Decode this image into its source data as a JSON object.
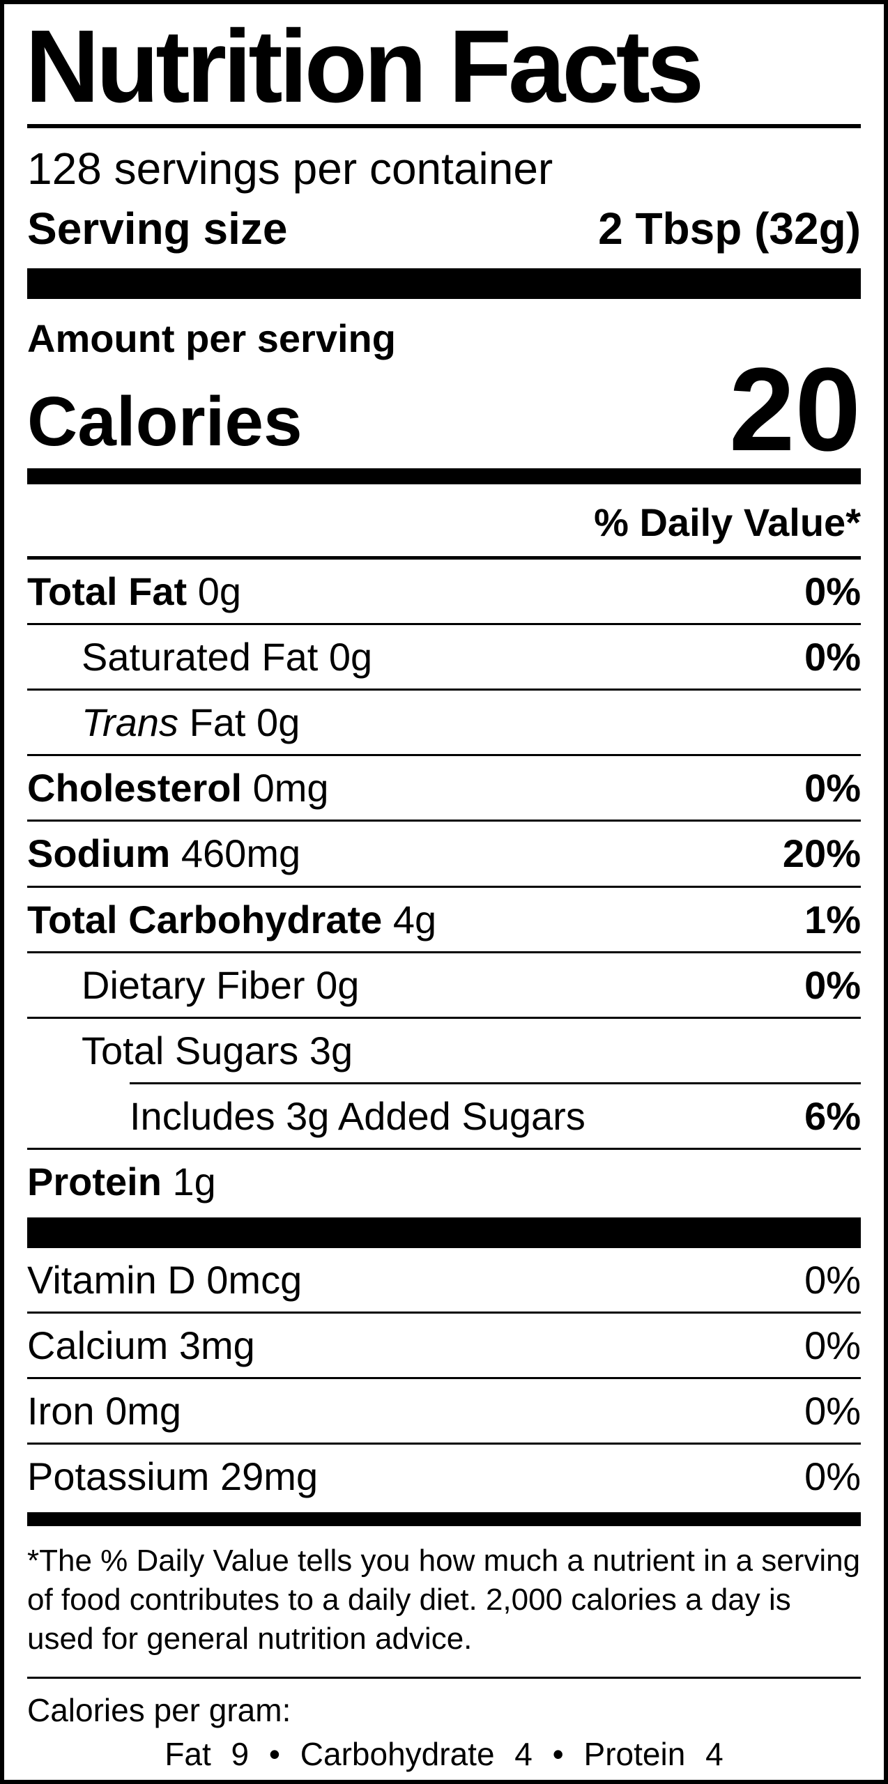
{
  "colors": {
    "ink": "#000000",
    "paper": "#ffffff"
  },
  "label": {
    "title": "Nutrition Facts",
    "servings_per_container": "128 servings per container",
    "serving_size_label": "Serving size",
    "serving_size_value": "2 Tbsp (32g)",
    "amount_per_serving": "Amount per serving",
    "calories_label": "Calories",
    "calories_value": "20",
    "daily_value_header": "% Daily Value*",
    "nutrients": [
      {
        "name": "Total Fat",
        "amount": "0g",
        "dv": "0%"
      },
      {
        "name": "Saturated Fat",
        "amount": "0g",
        "dv": "0%"
      },
      {
        "name_italic": "Trans",
        "name": "Fat",
        "amount": "0g",
        "dv": ""
      },
      {
        "name": "Cholesterol",
        "amount": "0mg",
        "dv": "0%"
      },
      {
        "name": "Sodium",
        "amount": "460mg",
        "dv": "20%"
      },
      {
        "name": "Total Carbohydrate",
        "amount": "4g",
        "dv": "1%"
      },
      {
        "name": "Dietary Fiber",
        "amount": "0g",
        "dv": "0%"
      },
      {
        "name": "Total Sugars",
        "amount": "3g",
        "dv": ""
      },
      {
        "name": "Includes 3g Added Sugars",
        "amount": "",
        "dv": "6%"
      },
      {
        "name": "Protein",
        "amount": "1g",
        "dv": ""
      }
    ],
    "micronutrients": [
      {
        "name": "Vitamin D",
        "amount": "0mcg",
        "dv": "0%"
      },
      {
        "name": "Calcium",
        "amount": "3mg",
        "dv": "0%"
      },
      {
        "name": "Iron",
        "amount": "0mg",
        "dv": "0%"
      },
      {
        "name": "Potassium",
        "amount": "29mg",
        "dv": "0%"
      }
    ],
    "footnote": "*The % Daily Value tells you how much a nutrient in a serving of food contributes to a daily diet. 2,000 calories a day is used for general nutrition advice.",
    "calories_per_gram_label": "Calories per gram:",
    "calories_per_gram_values": "Fat 9 • Carbohydrate 4 • Protein 4"
  }
}
